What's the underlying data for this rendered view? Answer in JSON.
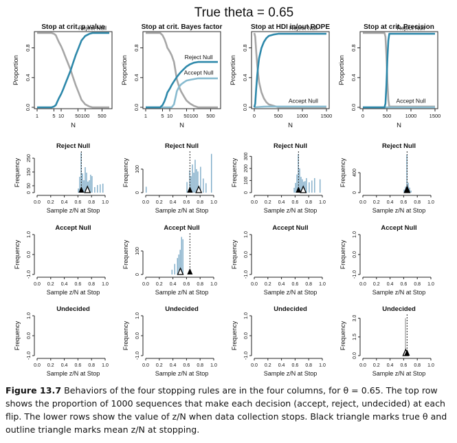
{
  "figure_title": "True theta = 0.65",
  "caption": {
    "label": "Figure 13.7",
    "text": "Behaviors of the four stopping rules are in the four columns, for θ = 0.65. The top row shows the proportion of 1000 sequences that make each decision (accept, reject, undecided) at each flip. The lower rows show the value of z/N when data collection stops. Black triangle marks true θ and outline triangle marks mean z/N at stopping."
  },
  "colors": {
    "reject": "#2d88aa",
    "accept": "#88bbd0",
    "undecided": "#a6a6a6",
    "hist_bar": "#7aa9c6",
    "triangle": "#000000"
  },
  "columns": [
    {
      "title": "Stop at crit. p value",
      "line": {
        "xaxis": "log",
        "xlabel": "N",
        "ylabel": "Proportion",
        "xticks": [
          "1",
          "5",
          "10",
          "50",
          "100",
          "500"
        ],
        "xtick_values": [
          1,
          5,
          10,
          50,
          100,
          500
        ],
        "yticks": [
          "0.0",
          "0.4",
          "0.8"
        ],
        "xlim": [
          1,
          1000
        ],
        "ylim": [
          0,
          1
        ],
        "labels": [
          {
            "text": "Reject Null",
            "series": "reject",
            "x": 200,
            "y": 1.04
          }
        ],
        "series": [
          {
            "role": "reject",
            "x": [
              1,
              2,
              3,
              4,
              5,
              6,
              7,
              8,
              10,
              12,
              15,
              20,
              25,
              30,
              40,
              50,
              70,
              100,
              150,
              200,
              300,
              500,
              1000
            ],
            "y": [
              0,
              0,
              0,
              0,
              0.01,
              0.03,
              0.08,
              0.12,
              0.18,
              0.24,
              0.32,
              0.42,
              0.5,
              0.58,
              0.7,
              0.78,
              0.9,
              0.96,
              0.99,
              1,
              1,
              1,
              1
            ]
          },
          {
            "role": "undecided",
            "x": [
              1,
              2,
              3,
              4,
              5,
              6,
              7,
              8,
              10,
              12,
              15,
              20,
              25,
              30,
              40,
              50,
              70,
              100,
              150,
              200,
              300,
              500,
              1000
            ],
            "y": [
              1,
              1,
              1,
              1,
              0.99,
              0.97,
              0.92,
              0.88,
              0.82,
              0.76,
              0.68,
              0.58,
              0.5,
              0.42,
              0.3,
              0.22,
              0.1,
              0.04,
              0.01,
              0,
              0,
              0,
              0
            ]
          }
        ]
      },
      "hists": [
        {
          "title": "Reject Null",
          "yticks": [
            "0",
            "50",
            "150",
            "250"
          ],
          "ytick_values": [
            0,
            50,
            150,
            250
          ],
          "ymax": 290,
          "bins": [
            0.6,
            0.62,
            0.64,
            0.66,
            0.68,
            0.7,
            0.72,
            0.74,
            0.76,
            0.78,
            0.8,
            0.84,
            0.88,
            0.92,
            0.96
          ],
          "heights": [
            30,
            115,
            290,
            140,
            90,
            185,
            145,
            80,
            90,
            130,
            120,
            40,
            55,
            60,
            65
          ],
          "mean": 0.74,
          "dashed": 0.65
        },
        {
          "title": "Accept Null",
          "yticks": [
            "-1.0",
            "0.0",
            "1.0"
          ],
          "ytick_values": [
            -1,
            0,
            1
          ],
          "ymin": -1,
          "ymax": 1,
          "bins": [],
          "heights": [],
          "mean": null,
          "dashed": null
        },
        {
          "title": "Undecided",
          "yticks": [
            "-1.0",
            "0.0",
            "1.0"
          ],
          "ytick_values": [
            -1,
            0,
            1
          ],
          "ymin": -1,
          "ymax": 1,
          "bins": [],
          "heights": [],
          "mean": null,
          "dashed": null
        }
      ]
    },
    {
      "title": "Stop at crit. Bayes factor",
      "line": {
        "xaxis": "log",
        "xlabel": "N",
        "ylabel": "Proportion",
        "xticks": [
          "1",
          "5",
          "10",
          "50",
          "100",
          "500"
        ],
        "xtick_values": [
          1,
          5,
          10,
          50,
          100,
          500
        ],
        "yticks": [
          "0.0",
          "0.4",
          "0.8"
        ],
        "xlim": [
          1,
          1000
        ],
        "ylim": [
          0,
          1
        ],
        "labels": [
          {
            "text": "Reject Null",
            "series": "reject",
            "x": 160,
            "y": 0.65
          },
          {
            "text": "Accept Null",
            "series": "accept",
            "x": 160,
            "y": 0.44
          }
        ],
        "series": [
          {
            "role": "reject",
            "x": [
              1,
              2,
              3,
              4,
              5,
              6,
              7,
              8,
              10,
              12,
              15,
              20,
              25,
              30,
              40,
              50,
              70,
              100,
              150,
              200,
              300,
              500,
              1000
            ],
            "y": [
              0,
              0,
              0,
              0,
              0.03,
              0.08,
              0.14,
              0.2,
              0.25,
              0.3,
              0.35,
              0.41,
              0.45,
              0.48,
              0.52,
              0.55,
              0.58,
              0.6,
              0.61,
              0.61,
              0.61,
              0.61,
              0.61
            ]
          },
          {
            "role": "accept",
            "x": [
              1,
              2,
              3,
              4,
              5,
              6,
              7,
              8,
              10,
              12,
              15,
              20,
              25,
              30,
              40,
              50,
              70,
              100,
              150,
              200,
              300,
              500,
              1000
            ],
            "y": [
              0,
              0,
              0,
              0,
              0,
              0,
              0,
              0,
              0,
              0,
              0.04,
              0.22,
              0.28,
              0.31,
              0.34,
              0.36,
              0.37,
              0.38,
              0.39,
              0.39,
              0.39,
              0.39,
              0.39
            ]
          },
          {
            "role": "undecided",
            "x": [
              1,
              2,
              3,
              4,
              5,
              6,
              7,
              8,
              10,
              12,
              15,
              20,
              25,
              30,
              40,
              50,
              70,
              100,
              150,
              200,
              300,
              500,
              1000
            ],
            "y": [
              1,
              1,
              1,
              1,
              0.97,
              0.92,
              0.86,
              0.8,
              0.75,
              0.7,
              0.61,
              0.37,
              0.27,
              0.21,
              0.14,
              0.09,
              0.05,
              0.02,
              0,
              0,
              0,
              0,
              0
            ]
          }
        ]
      },
      "hists": [
        {
          "title": "Reject Null",
          "yticks": [
            "0",
            "100"
          ],
          "ytick_values": [
            0,
            100
          ],
          "ymax": 170,
          "bins": [
            0.0,
            0.6,
            0.64,
            0.66,
            0.68,
            0.7,
            0.72,
            0.74,
            0.76,
            0.8,
            0.84,
            0.88,
            0.96
          ],
          "heights": [
            25,
            45,
            95,
            70,
            120,
            85,
            140,
            100,
            90,
            110,
            60,
            40,
            165
          ],
          "mean": 0.78,
          "dashed": 0.65
        },
        {
          "title": "Accept Null",
          "yticks": [
            "0",
            "100"
          ],
          "ytick_values": [
            0,
            100
          ],
          "ymax": 170,
          "bins": [
            0.38,
            0.42,
            0.46,
            0.48,
            0.5,
            0.52,
            0.54
          ],
          "heights": [
            20,
            45,
            70,
            85,
            105,
            160,
            150
          ],
          "mean": 0.51,
          "dashed": 0.65
        },
        {
          "title": "Undecided",
          "yticks": [
            "-1.0",
            "0.0",
            "1.0"
          ],
          "ytick_values": [
            -1,
            0,
            1
          ],
          "ymin": -1,
          "ymax": 1,
          "bins": [],
          "heights": [],
          "mean": null,
          "dashed": null
        }
      ]
    },
    {
      "title": "Stop at HDI in/out ROPE",
      "line": {
        "xaxis": "linear",
        "xlabel": "N",
        "ylabel": "Proportion",
        "xticks": [
          "0",
          "500",
          "1000",
          "1500"
        ],
        "xtick_values": [
          0,
          500,
          1000,
          1500
        ],
        "yticks": [
          "0.0",
          "0.4",
          "0.8"
        ],
        "xlim": [
          0,
          1500
        ],
        "ylim": [
          0,
          1
        ],
        "labels": [
          {
            "text": "Reject Null",
            "series": "reject",
            "x": 1020,
            "y": 1.04
          },
          {
            "text": "Accept Null",
            "series": "accept",
            "x": 1020,
            "y": 0.06
          }
        ],
        "series": [
          {
            "role": "reject",
            "x": [
              0,
              20,
              40,
              60,
              80,
              100,
              150,
              200,
              250,
              300,
              400,
              500,
              700,
              1000,
              1500
            ],
            "y": [
              0,
              0.05,
              0.25,
              0.42,
              0.55,
              0.66,
              0.8,
              0.88,
              0.93,
              0.96,
              0.98,
              0.99,
              0.99,
              0.99,
              0.99
            ]
          },
          {
            "role": "accept",
            "x": [
              0,
              100,
              200,
              300,
              500,
              1000,
              1500
            ],
            "y": [
              0,
              0.005,
              0.008,
              0.01,
              0.01,
              0.01,
              0.01
            ]
          },
          {
            "role": "undecided",
            "x": [
              0,
              20,
              40,
              60,
              80,
              100,
              150,
              200,
              250,
              300,
              400,
              500,
              700,
              1000,
              1500
            ],
            "y": [
              1,
              0.95,
              0.75,
              0.58,
              0.45,
              0.34,
              0.2,
              0.12,
              0.07,
              0.04,
              0.02,
              0,
              0,
              0,
              0
            ]
          }
        ]
      },
      "hists": [
        {
          "title": "Reject Null",
          "yticks": [
            "0",
            "100",
            "200",
            "300"
          ],
          "ytick_values": [
            0,
            100,
            200,
            300
          ],
          "ymax": 330,
          "bins": [
            0.58,
            0.6,
            0.62,
            0.64,
            0.66,
            0.68,
            0.7,
            0.72,
            0.74,
            0.76,
            0.8,
            0.84,
            0.88,
            0.96
          ],
          "heights": [
            40,
            80,
            150,
            320,
            200,
            130,
            110,
            90,
            95,
            120,
            85,
            100,
            120,
            110
          ],
          "mean": 0.72,
          "dashed": 0.65
        },
        {
          "title": "Accept Null",
          "yticks": [
            "-1.0",
            "0.0",
            "1.0"
          ],
          "ytick_values": [
            -1,
            0,
            1
          ],
          "ymin": -1,
          "ymax": 1,
          "bins": [],
          "heights": [],
          "mean": null,
          "dashed": null
        },
        {
          "title": "Undecided",
          "yticks": [
            "-1.0",
            "0.0",
            "1.0"
          ],
          "ytick_values": [
            -1,
            0,
            1
          ],
          "ymin": -1,
          "ymax": 1,
          "bins": [],
          "heights": [],
          "mean": null,
          "dashed": null
        }
      ]
    },
    {
      "title": "Stop at crit. Precision",
      "line": {
        "xaxis": "linear",
        "xlabel": "N",
        "ylabel": "Proportion",
        "xticks": [
          "0",
          "500",
          "1000",
          "1500"
        ],
        "xtick_values": [
          0,
          500,
          1000,
          1500
        ],
        "yticks": [
          "0.0",
          "0.4",
          "0.8"
        ],
        "xlim": [
          0,
          1500
        ],
        "ylim": [
          0,
          1
        ],
        "labels": [
          {
            "text": "Reject Null",
            "series": "reject",
            "x": 1000,
            "y": 1.04
          },
          {
            "text": "Accept Null",
            "series": "accept",
            "x": 1000,
            "y": 0.06
          }
        ],
        "series": [
          {
            "role": "reject",
            "x": [
              0,
              450,
              470,
              490,
              510,
              530,
              550,
              600,
              800,
              1500
            ],
            "y": [
              0,
              0,
              0.05,
              0.3,
              0.65,
              0.9,
              0.99,
              0.99,
              0.99,
              0.99
            ]
          },
          {
            "role": "accept",
            "x": [
              0,
              500,
              1500
            ],
            "y": [
              0,
              0,
              0
            ]
          },
          {
            "role": "undecided",
            "x": [
              0,
              450,
              470,
              490,
              510,
              530,
              550,
              600,
              800,
              1500
            ],
            "y": [
              1,
              1,
              0.95,
              0.7,
              0.35,
              0.1,
              0.01,
              0.01,
              0.01,
              0.01
            ]
          }
        ]
      },
      "hists": [
        {
          "title": "Reject Null",
          "yticks": [
            "0",
            "400"
          ],
          "ytick_values": [
            0,
            400
          ],
          "ymax": 800,
          "bins": [
            0.6,
            0.62,
            0.64,
            0.66,
            0.68,
            0.7
          ],
          "heights": [
            60,
            120,
            760,
            200,
            100,
            40
          ],
          "mean": 0.65,
          "dashed": 0.65
        },
        {
          "title": "Accept Null",
          "yticks": [
            "-1.0",
            "0.0",
            "1.0"
          ],
          "ytick_values": [
            -1,
            0,
            1
          ],
          "ymin": -1,
          "ymax": 1,
          "bins": [],
          "heights": [],
          "mean": null,
          "dashed": null
        },
        {
          "title": "Undecided",
          "yticks": [
            "0.0",
            "1.5",
            "3.0"
          ],
          "ytick_values": [
            0,
            1.5,
            3
          ],
          "ymax": 3.2,
          "bins": [
            0.62
          ],
          "heights": [
            3
          ],
          "mean": 0.63,
          "dashed": 0.65,
          "bar_color": "undecided"
        }
      ]
    }
  ],
  "hist_axis": {
    "xlabel": "Sample z/N at Stop",
    "ylabel": "Frequency",
    "xticks": [
      "0.0",
      "0.2",
      "0.4",
      "0.6",
      "0.8",
      "1.0"
    ],
    "xtick_values": [
      0,
      0.2,
      0.4,
      0.6,
      0.8,
      1.0
    ],
    "bin_width": 0.02
  },
  "chart_data": {
    "type": "line",
    "title": "True theta = 0.65",
    "note": "Top row: proportion of sequences making each decision vs N; lower rows: histograms of z/N at stop",
    "ref_theta": 0.65
  }
}
